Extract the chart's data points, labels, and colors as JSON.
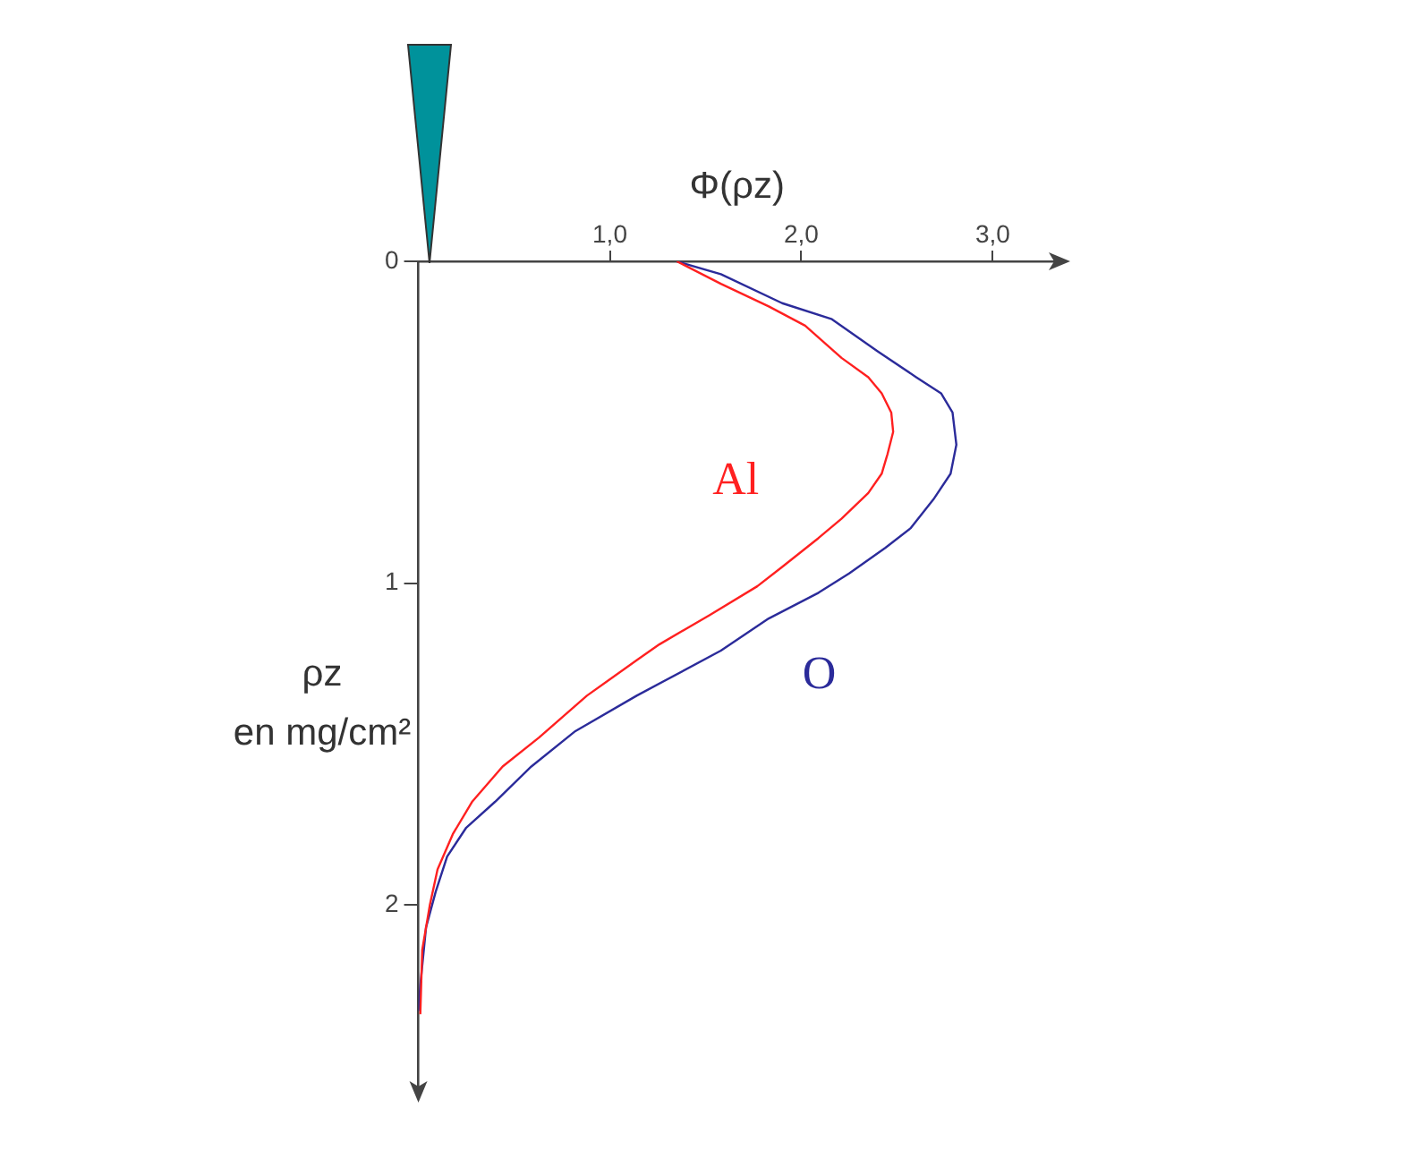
{
  "chart_data": {
    "type": "line",
    "xlabel": "Φ(ρz)",
    "ylabel": "ρz\nen mg/cm²",
    "xlim": [
      0,
      3.33
    ],
    "ylim": [
      2.57,
      0
    ],
    "xticks": [
      {
        "value": 1,
        "label": "1,0"
      },
      {
        "value": 2,
        "label": "2,0"
      },
      {
        "value": 3,
        "label": "3,0"
      }
    ],
    "yticks": [
      0,
      1,
      2
    ],
    "grid": false,
    "legend": false,
    "marker": "none",
    "line_style": "solid",
    "series": [
      {
        "name": "Al",
        "color": "#ff2020",
        "x": [
          1.35,
          1.58,
          1.83,
          2.02,
          2.21,
          2.35,
          2.42,
          2.47,
          2.48,
          2.45,
          2.42,
          2.35,
          2.21,
          2.09,
          1.9,
          1.77,
          1.52,
          1.26,
          1.14,
          0.88,
          0.63,
          0.44,
          0.28,
          0.18,
          0.1,
          0.06,
          0.02,
          0.01
        ],
        "values": [
          0,
          0.07,
          0.14,
          0.2,
          0.3,
          0.36,
          0.41,
          0.47,
          0.53,
          0.6,
          0.66,
          0.72,
          0.8,
          0.86,
          0.95,
          1.01,
          1.1,
          1.19,
          1.24,
          1.35,
          1.48,
          1.57,
          1.68,
          1.78,
          1.89,
          2.0,
          2.14,
          2.34
        ]
      },
      {
        "name": "O",
        "color": "#2b2b9a",
        "x": [
          1.35,
          1.58,
          1.9,
          2.16,
          2.4,
          2.6,
          2.73,
          2.79,
          2.81,
          2.78,
          2.69,
          2.57,
          2.44,
          2.25,
          2.09,
          1.83,
          1.58,
          1.14,
          0.82,
          0.59,
          0.4,
          0.25,
          0.15,
          0.09,
          0.04,
          0.01,
          0
        ],
        "values": [
          0,
          0.04,
          0.13,
          0.18,
          0.28,
          0.36,
          0.41,
          0.47,
          0.57,
          0.66,
          0.74,
          0.83,
          0.89,
          0.97,
          1.03,
          1.11,
          1.21,
          1.35,
          1.46,
          1.57,
          1.68,
          1.76,
          1.85,
          1.96,
          2.07,
          2.25,
          2.33
        ]
      }
    ]
  }
}
